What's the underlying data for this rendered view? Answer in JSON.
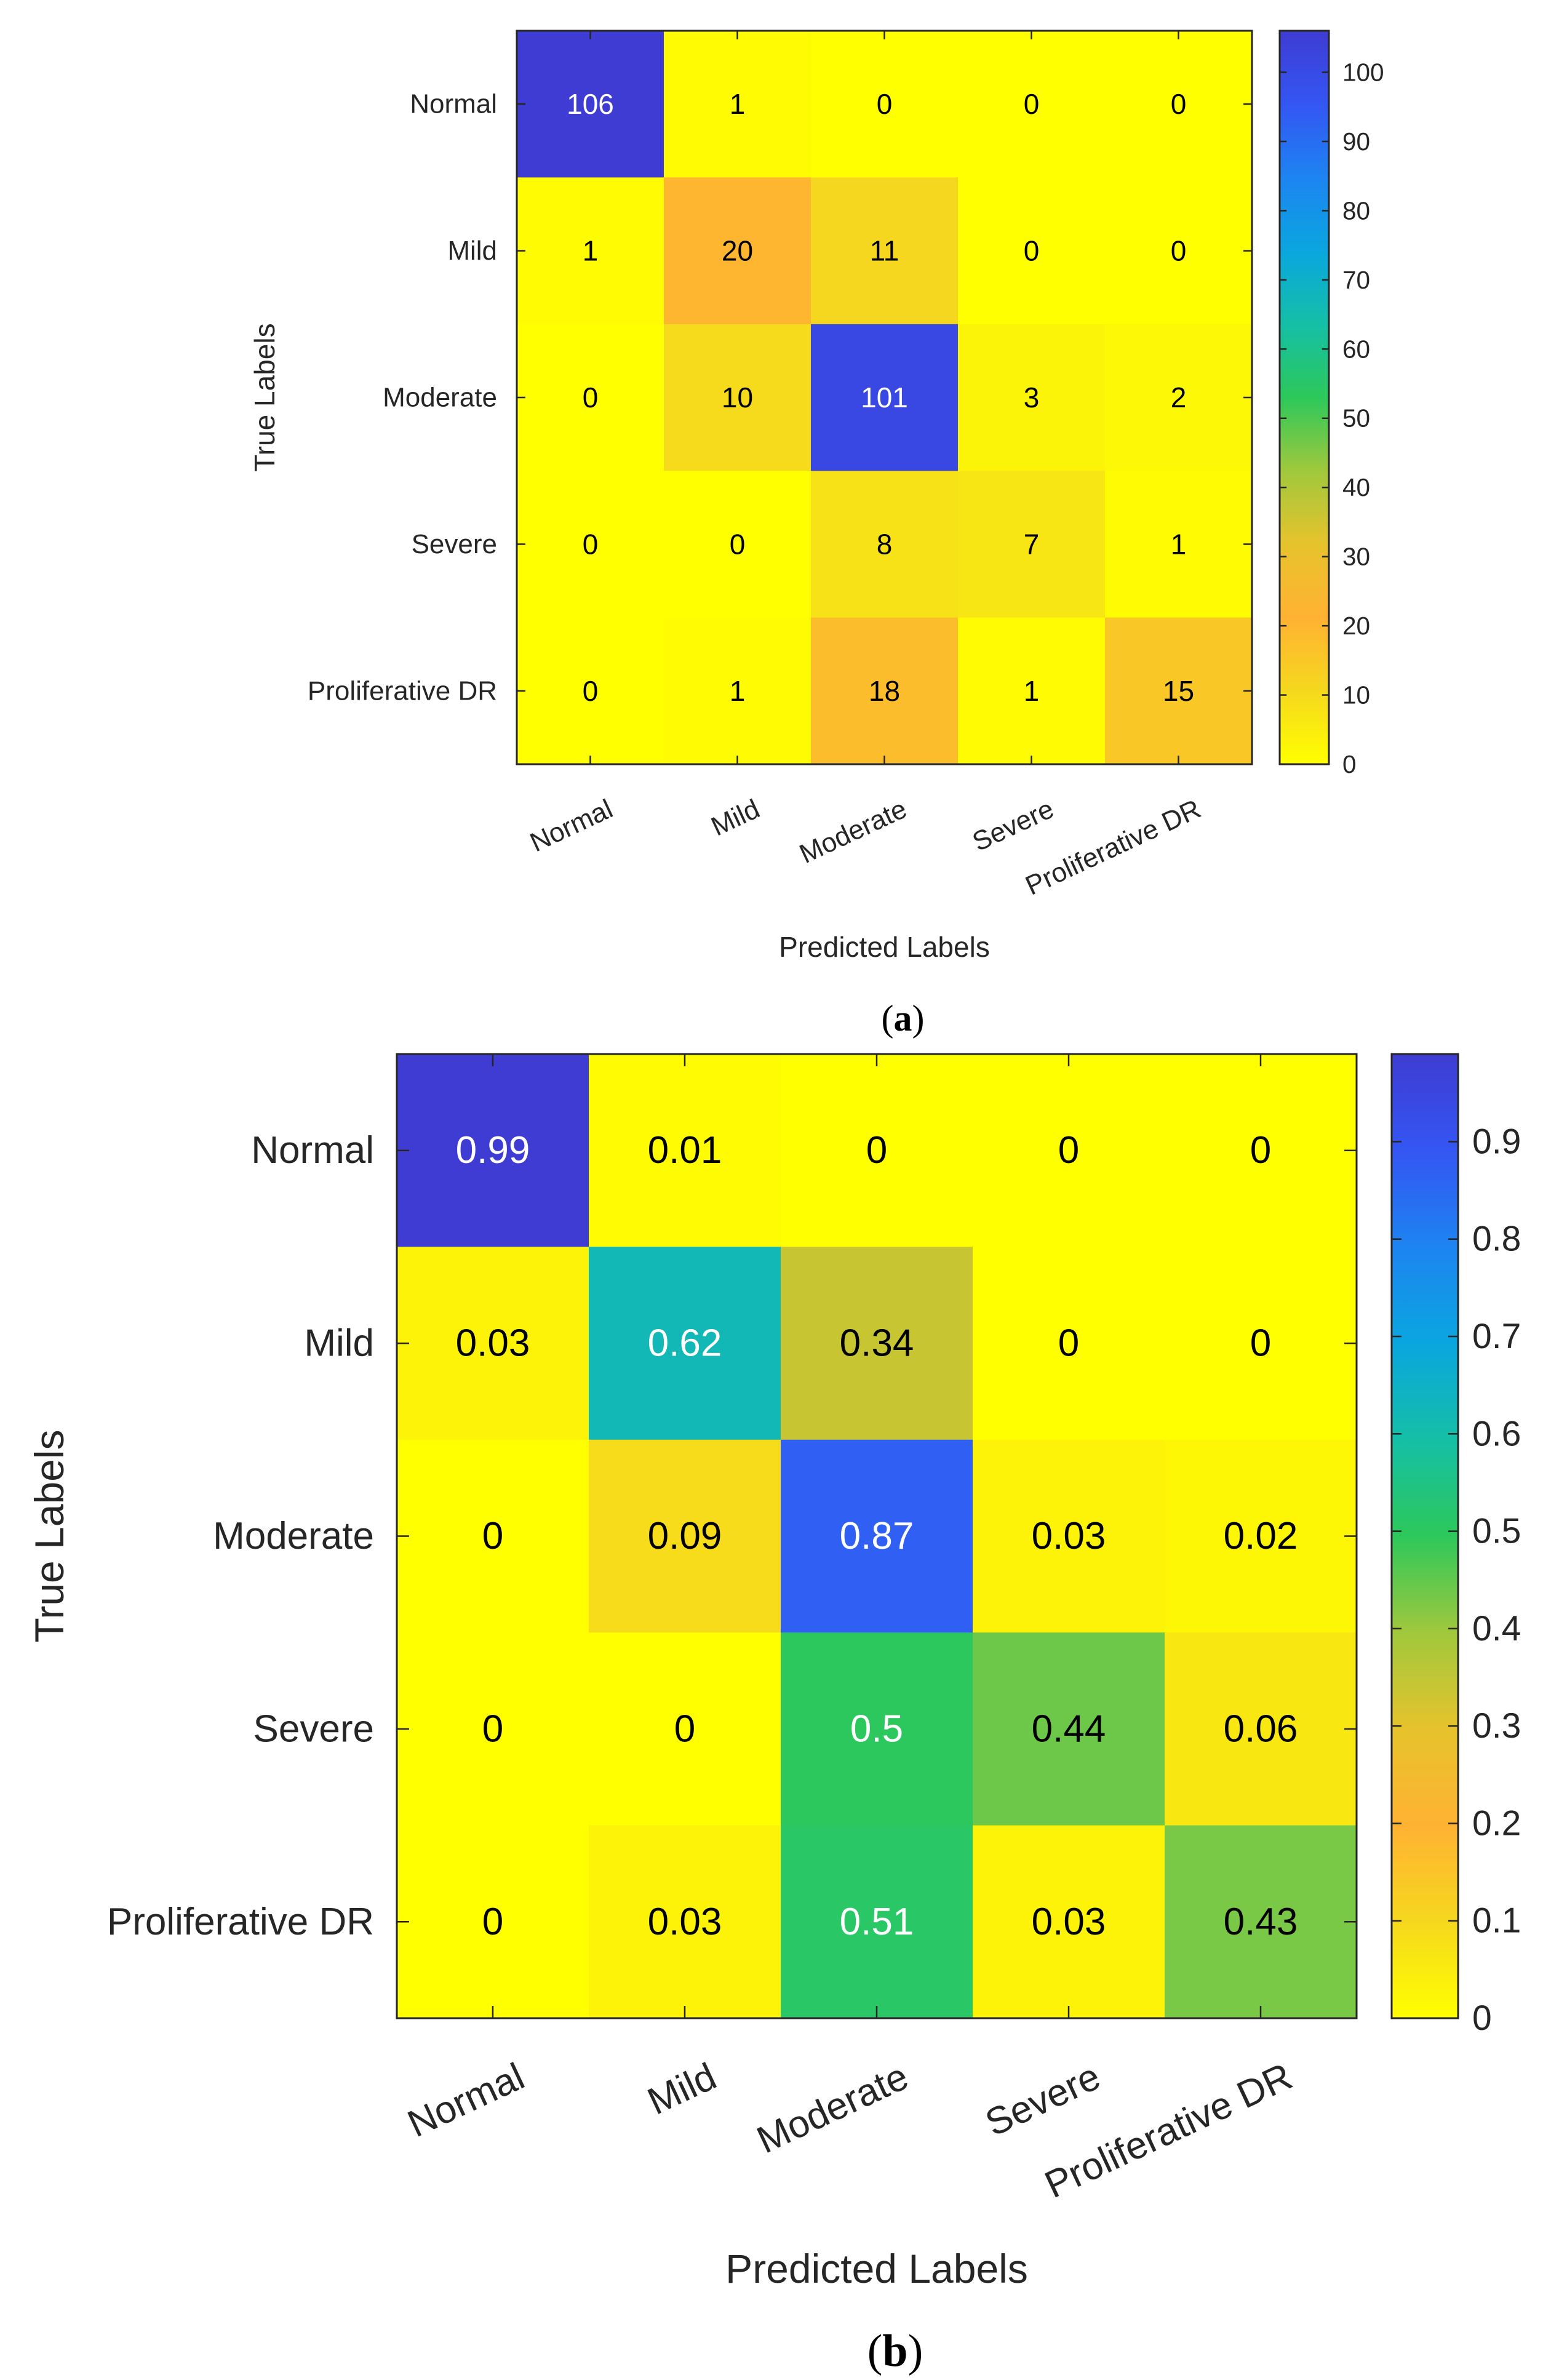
{
  "colorbar_stops": [
    "#ffff00",
    "#f5d81e",
    "#ffb232",
    "#e6c32c",
    "#a0c83c",
    "#2dc85a",
    "#14bfa6",
    "#0aa6df",
    "#1d84f1",
    "#3456f3",
    "#3e3cd2"
  ],
  "chart_data": [
    {
      "type": "heatmap",
      "panel_label": "a",
      "xlabel": "Predicted Labels",
      "ylabel": "True Labels",
      "categories": [
        "Normal",
        "Mild",
        "Moderate",
        "Severe",
        "Proliferative DR"
      ],
      "rows": [
        "Normal",
        "Mild",
        "Moderate",
        "Severe",
        "Proliferative DR"
      ],
      "values": [
        [
          106,
          1,
          0,
          0,
          0
        ],
        [
          1,
          20,
          11,
          0,
          0
        ],
        [
          0,
          10,
          101,
          3,
          2
        ],
        [
          0,
          0,
          8,
          7,
          1
        ],
        [
          0,
          1,
          18,
          1,
          15
        ]
      ],
      "colorbar": {
        "min": 0,
        "max": 106,
        "ticks": [
          0,
          10,
          20,
          30,
          40,
          50,
          60,
          70,
          80,
          90,
          100
        ]
      }
    },
    {
      "type": "heatmap",
      "panel_label": "b",
      "xlabel": "Predicted Labels",
      "ylabel": "True Labels",
      "categories": [
        "Normal",
        "Mild",
        "Moderate",
        "Severe",
        "Proliferative DR"
      ],
      "rows": [
        "Normal",
        "Mild",
        "Moderate",
        "Severe",
        "Proliferative DR"
      ],
      "values": [
        [
          0.99,
          0.01,
          0,
          0,
          0
        ],
        [
          0.03,
          0.62,
          0.34,
          0,
          0
        ],
        [
          0,
          0.09,
          0.87,
          0.03,
          0.02
        ],
        [
          0,
          0,
          0.5,
          0.44,
          0.06
        ],
        [
          0,
          0.03,
          0.51,
          0.03,
          0.43
        ]
      ],
      "colorbar": {
        "min": 0,
        "max": 0.99,
        "ticks": [
          0,
          0.1,
          0.2,
          0.3,
          0.4,
          0.5,
          0.6,
          0.7,
          0.8,
          0.9
        ]
      }
    }
  ]
}
